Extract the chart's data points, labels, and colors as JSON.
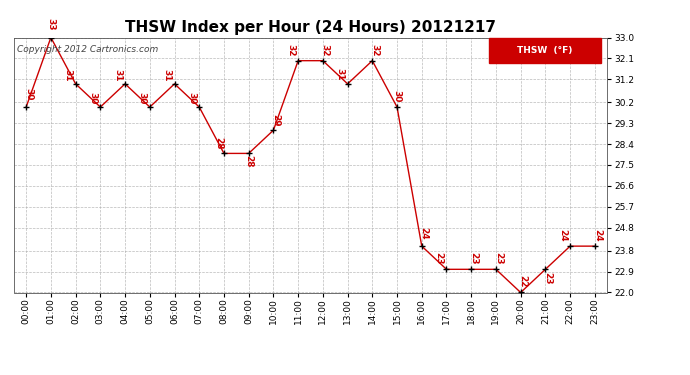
{
  "title": "THSW Index per Hour (24 Hours) 20121217",
  "copyright_text": "Copyright 2012 Cartronics.com",
  "legend_label": "THSW  (°F)",
  "hours": [
    0,
    1,
    2,
    3,
    4,
    5,
    6,
    7,
    8,
    9,
    10,
    11,
    12,
    13,
    14,
    15,
    16,
    17,
    18,
    19,
    20,
    21,
    22,
    23
  ],
  "x_labels": [
    "00:00",
    "01:00",
    "02:00",
    "03:00",
    "04:00",
    "05:00",
    "06:00",
    "07:00",
    "08:00",
    "09:00",
    "10:00",
    "11:00",
    "12:00",
    "13:00",
    "14:00",
    "15:00",
    "16:00",
    "17:00",
    "18:00",
    "19:00",
    "20:00",
    "21:00",
    "22:00",
    "23:00"
  ],
  "values": [
    30,
    33,
    31,
    30,
    31,
    30,
    31,
    30,
    28,
    28,
    29,
    32,
    32,
    31,
    32,
    30,
    24,
    23,
    23,
    23,
    22,
    23,
    24,
    24
  ],
  "line_color": "#cc0000",
  "marker_color": "#000000",
  "label_color": "#cc0000",
  "background_color": "#ffffff",
  "grid_color": "#aaaaaa",
  "ylim_min": 22.0,
  "ylim_max": 33.0,
  "yticks": [
    22.0,
    22.9,
    23.8,
    24.8,
    25.7,
    26.6,
    27.5,
    28.4,
    29.3,
    30.2,
    31.2,
    32.1,
    33.0
  ],
  "legend_box_color": "#cc0000",
  "legend_text_color": "#ffffff",
  "title_fontsize": 11,
  "label_fontsize": 6.5,
  "tick_fontsize": 6.5,
  "copyright_fontsize": 6.5,
  "label_offsets_dx": [
    0.1,
    0.0,
    -0.3,
    -0.3,
    -0.3,
    -0.3,
    -0.3,
    -0.3,
    -0.2,
    0.0,
    0.1,
    -0.3,
    0.1,
    -0.3,
    0.1,
    0.0,
    0.1,
    -0.3,
    0.1,
    0.1,
    0.1,
    0.1,
    -0.3,
    0.1
  ],
  "label_offsets_dy": [
    0.3,
    0.3,
    0.1,
    0.1,
    0.1,
    0.1,
    0.1,
    0.1,
    0.15,
    -0.6,
    0.15,
    0.2,
    0.2,
    0.15,
    0.2,
    0.2,
    0.3,
    0.2,
    0.2,
    0.2,
    0.2,
    -0.65,
    0.2,
    0.2
  ]
}
